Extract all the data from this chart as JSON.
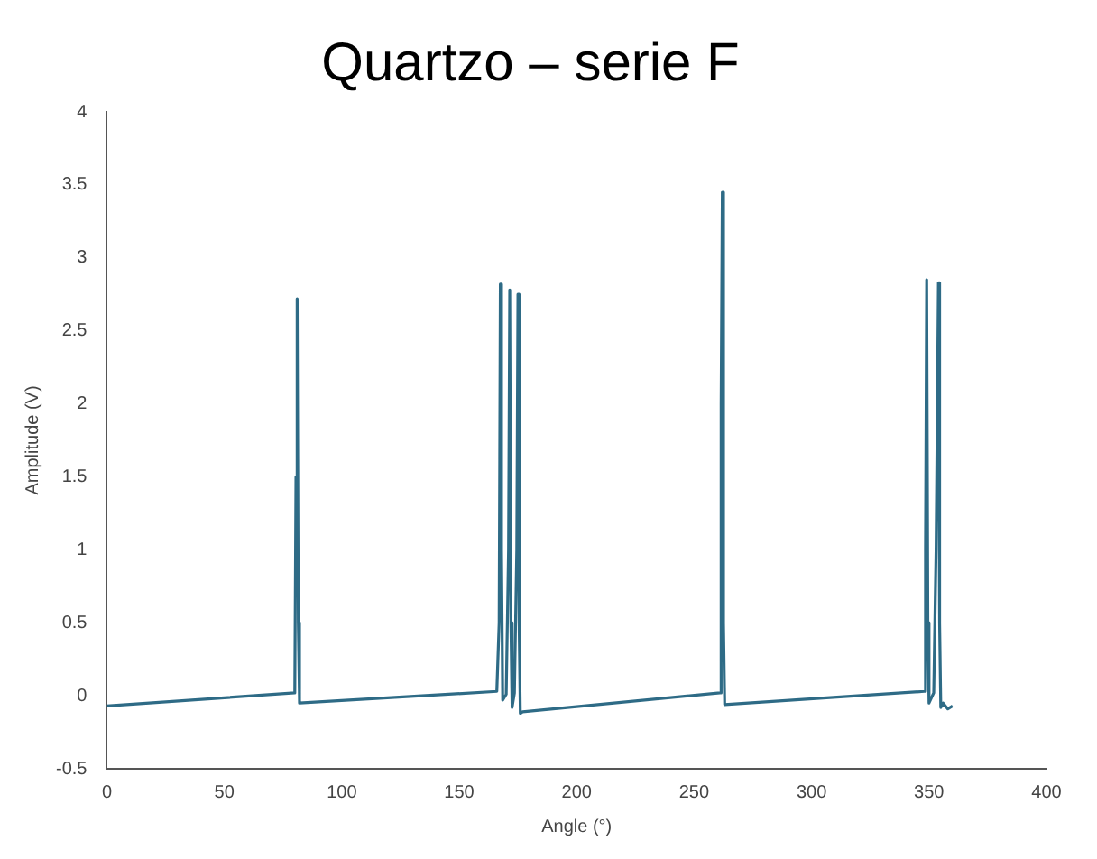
{
  "chart_data": {
    "type": "line",
    "title": "Quartzo – serie F",
    "xlabel": "Angle (°)",
    "ylabel": "Amplitude (V)",
    "x": [
      0,
      80,
      80.5,
      81,
      81.5,
      82,
      166,
      167,
      167.5,
      168,
      168.5,
      170,
      171,
      171.5,
      172,
      172.5,
      173.5,
      174.5,
      175,
      175.5,
      176,
      177,
      261,
      261.5,
      262,
      262.5,
      263,
      348,
      348.5,
      349,
      349.5,
      350,
      352,
      353,
      354,
      354.5,
      355,
      356,
      358,
      360
    ],
    "series": [
      {
        "color": "#2e6b86",
        "values": [
          -0.07,
          0.02,
          1.5,
          2.72,
          0.5,
          -0.05,
          0.03,
          0.5,
          2.82,
          1,
          -0.03,
          0.01,
          1,
          2.78,
          0.5,
          -0.08,
          0.02,
          1,
          2.75,
          0.5,
          -0.12,
          -0.11,
          0.02,
          2,
          3.45,
          0.5,
          -0.06,
          0.03,
          1,
          2.85,
          0.5,
          -0.05,
          0.02,
          1,
          2.83,
          0.5,
          -0.08,
          -0.05,
          -0.09,
          -0.07
        ]
      }
    ],
    "xlim": [
      0,
      400
    ],
    "xticks": [
      0,
      50,
      100,
      150,
      200,
      250,
      300,
      350,
      400
    ],
    "ylim": [
      -0.5,
      4
    ],
    "yticks": [
      -0.5,
      0,
      0.5,
      1,
      1.5,
      2,
      2.5,
      3,
      3.5,
      4
    ],
    "grid": false,
    "legend": false,
    "marker": "none",
    "line_style": "solid"
  }
}
